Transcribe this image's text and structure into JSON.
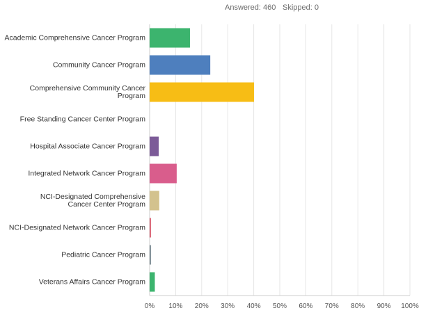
{
  "header": {
    "answered": "Answered: 460",
    "skipped": "Skipped: 0"
  },
  "chart_data": {
    "type": "hbar",
    "categories": [
      "Academic Comprehensive Cancer Program",
      "Community Cancer Program",
      "Comprehensive Community Cancer Program",
      "Free Standing Cancer Center Program",
      "Hospital Associate Cancer Program",
      "Integrated Network Cancer Program",
      "NCI-Designated Comprehensive\nCancer Center Program",
      "NCI-Designated Network Cancer Program",
      "Pediatric Cancer Program",
      "Veterans Affairs Cancer Program"
    ],
    "values": [
      15.5,
      23.3,
      40.1,
      0,
      3.5,
      10.4,
      3.7,
      0.5,
      0.5,
      2
    ],
    "colors": [
      "#3cb46e",
      "#4e7fbe",
      "#f7bd15",
      "#f0875a",
      "#7c5b98",
      "#d95d8c",
      "#d3c28e",
      "#d85a6c",
      "#76878f"
    ],
    "xlim": [
      0,
      100
    ],
    "xticks": [
      {
        "value": 0,
        "label": "0%"
      },
      {
        "value": 10,
        "label": "10%"
      },
      {
        "value": 20,
        "label": "20%"
      },
      {
        "value": 30,
        "label": "30%"
      },
      {
        "value": 40,
        "label": "40%"
      },
      {
        "value": 50,
        "label": "50%"
      },
      {
        "value": 60,
        "label": "60%"
      },
      {
        "value": 70,
        "label": "70%"
      },
      {
        "value": 80,
        "label": "80%"
      },
      {
        "value": 90,
        "label": "90%"
      },
      {
        "value": 100,
        "label": "100%"
      }
    ],
    "grid": true
  }
}
